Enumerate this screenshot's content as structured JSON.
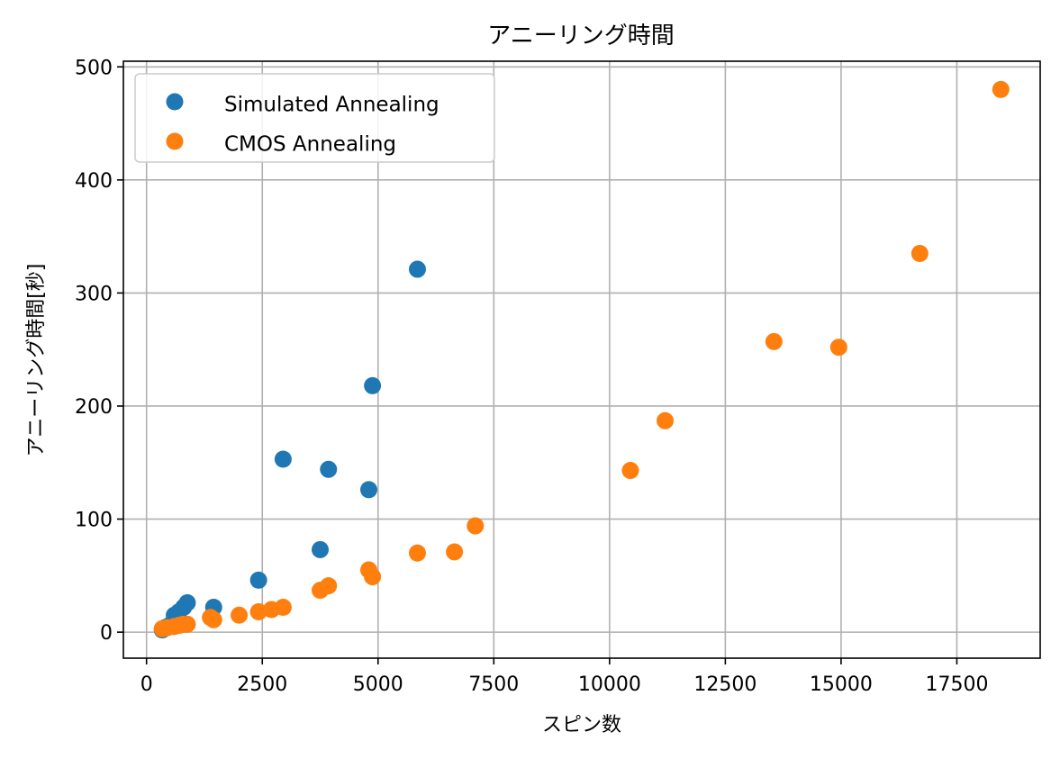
{
  "chart_data": {
    "type": "scatter",
    "title": "アニーリング時間",
    "xlabel": "スピン数",
    "ylabel": "アニーリング時間[秒]",
    "xlim": [
      -500,
      19300
    ],
    "ylim": [
      -23,
      505
    ],
    "xticks": [
      0,
      2500,
      5000,
      7500,
      10000,
      12500,
      15000,
      17500
    ],
    "yticks": [
      0,
      100,
      200,
      300,
      400,
      500
    ],
    "grid": true,
    "legend_position": "top-left",
    "series": [
      {
        "name": "Simulated Annealing",
        "color": "#1f77b4",
        "points": [
          [
            340,
            2
          ],
          [
            400,
            4
          ],
          [
            500,
            6
          ],
          [
            600,
            15
          ],
          [
            700,
            18
          ],
          [
            800,
            22
          ],
          [
            880,
            26
          ],
          [
            1450,
            22
          ],
          [
            2420,
            46
          ],
          [
            2950,
            153
          ],
          [
            3750,
            73
          ],
          [
            3930,
            144
          ],
          [
            4800,
            126
          ],
          [
            4880,
            218
          ],
          [
            5850,
            321
          ]
        ]
      },
      {
        "name": "CMOS Annealing",
        "color": "#ff7f0e",
        "points": [
          [
            340,
            3
          ],
          [
            450,
            4
          ],
          [
            600,
            5
          ],
          [
            700,
            6
          ],
          [
            800,
            7
          ],
          [
            880,
            7
          ],
          [
            1380,
            13
          ],
          [
            1450,
            11
          ],
          [
            2000,
            15
          ],
          [
            2420,
            18
          ],
          [
            2700,
            20
          ],
          [
            2950,
            22
          ],
          [
            3750,
            37
          ],
          [
            3930,
            41
          ],
          [
            4800,
            55
          ],
          [
            4880,
            49
          ],
          [
            5850,
            70
          ],
          [
            6650,
            71
          ],
          [
            7100,
            94
          ],
          [
            10450,
            143
          ],
          [
            11200,
            187
          ],
          [
            13550,
            257
          ],
          [
            14950,
            252
          ],
          [
            16700,
            335
          ],
          [
            18450,
            480
          ]
        ]
      }
    ]
  }
}
